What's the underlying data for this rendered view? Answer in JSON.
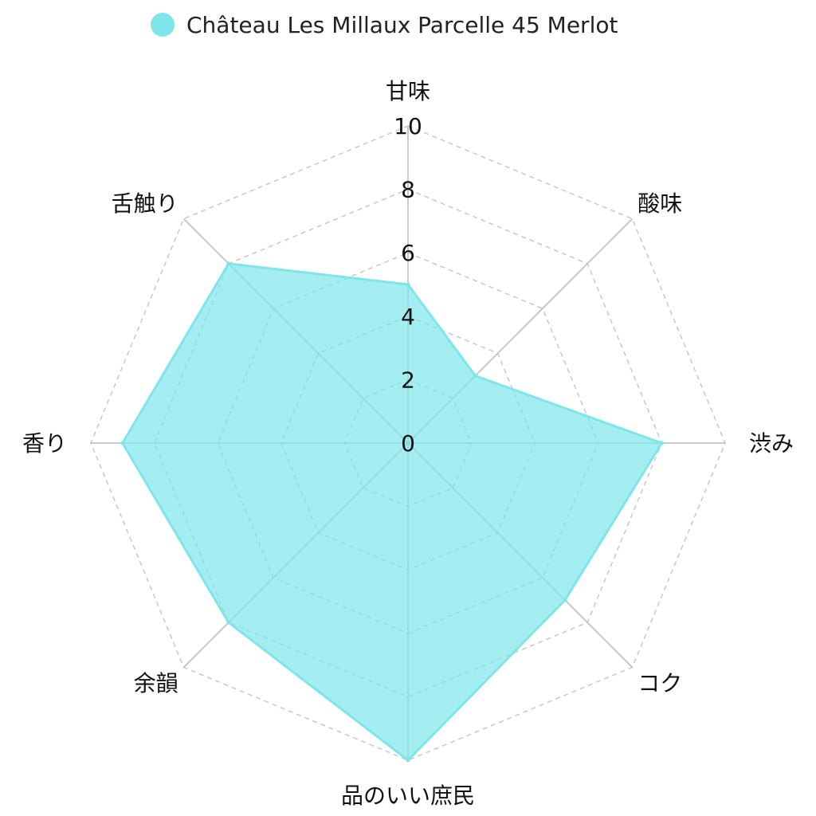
{
  "chart_data": {
    "type": "radar",
    "title": "",
    "legend": {
      "placement": "top-center"
    },
    "categories": [
      "甘味",
      "酸味",
      "渋み",
      "コク",
      "品のいい庶民",
      "余韻",
      "香り",
      "舌触り"
    ],
    "series": [
      {
        "name": "Château Les Millaux Parcelle 45 Merlot",
        "values": [
          5,
          3,
          8,
          7,
          10,
          8,
          9,
          8
        ],
        "color": "#7ee6ea",
        "fill_opacity": 0.7
      }
    ],
    "rlim": [
      0,
      10
    ],
    "ticks": [
      "0",
      "2",
      "4",
      "6",
      "8",
      "10"
    ],
    "tick_values": [
      0,
      2,
      4,
      6,
      8,
      10
    ],
    "grid": true
  }
}
